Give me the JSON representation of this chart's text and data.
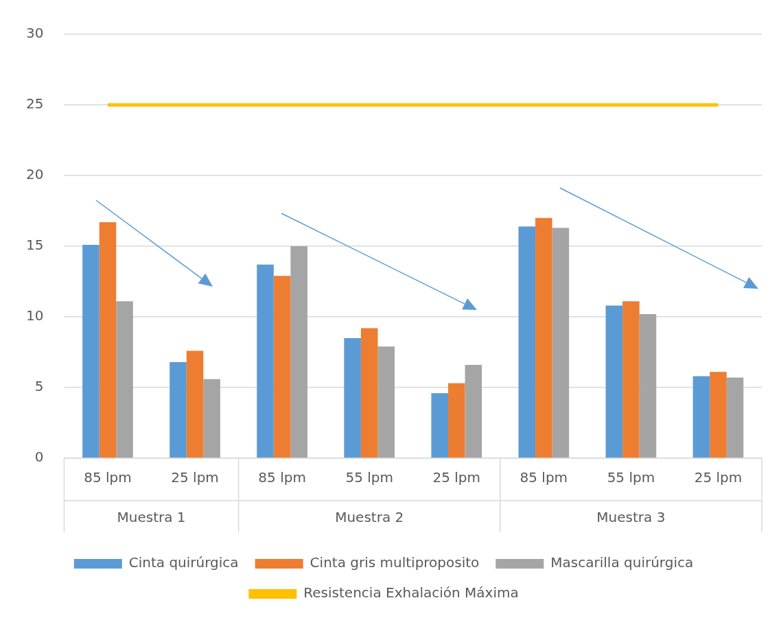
{
  "chart_data": {
    "type": "bar",
    "categories": [
      "85 lpm",
      "25 lpm",
      "85 lpm",
      "55 lpm",
      "25 lpm",
      "85 lpm",
      "55 lpm",
      "25 lpm"
    ],
    "annotations": [
      "Muestra 1",
      "Muestra 2",
      "Muestra 3"
    ],
    "series": [
      {
        "name": "Cinta quirúrgica",
        "color": "#5b9bd5",
        "values": [
          15.1,
          6.8,
          13.7,
          8.5,
          4.6,
          16.4,
          10.8,
          5.8
        ]
      },
      {
        "name": "Cinta gris multiproposito",
        "color": "#ed7d31",
        "values": [
          16.7,
          7.6,
          12.9,
          9.2,
          5.3,
          17.0,
          11.1,
          6.1
        ]
      },
      {
        "name": "Mascarilla quirúrgica",
        "color": "#a5a5a5",
        "values": [
          11.1,
          5.6,
          15.0,
          7.9,
          6.6,
          16.3,
          10.2,
          5.7
        ]
      },
      {
        "name": "Resistencia Exhalación Máxima",
        "color": "#ffc000",
        "type": "line",
        "marker": "none",
        "values": [
          25,
          25,
          25,
          25,
          25,
          25,
          25,
          25
        ]
      }
    ],
    "ylim": [
      0,
      30
    ],
    "yticks": [
      0,
      5,
      10,
      15,
      20,
      25,
      30
    ],
    "grid": "y",
    "legend": "bottom"
  }
}
